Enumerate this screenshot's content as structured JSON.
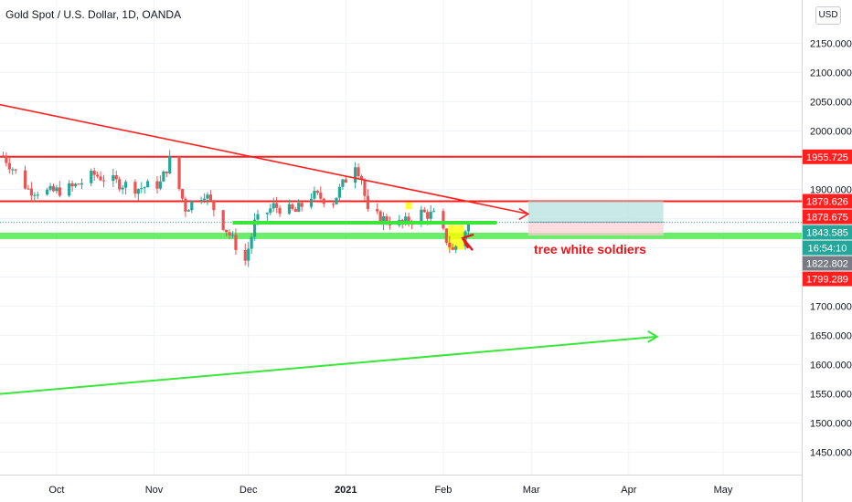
{
  "header": {
    "title": "Gold Spot / U.S. Dollar, 1D, OANDA",
    "currency_button": "USD"
  },
  "colors": {
    "up": "#26a69a",
    "down": "#ef5350",
    "resistance": "#ff1f1f",
    "support": "#39e639",
    "annotation": "#e8151b",
    "highlight": "#ffff00"
  },
  "chart_data": {
    "type": "candlestick",
    "title": "Gold Spot / U.S. Dollar, 1D, OANDA",
    "ylim": [
      1412,
      2224
    ],
    "y_ticks": [
      1450,
      1500,
      1550,
      1600,
      1650,
      1700,
      1750,
      1800,
      1850,
      1900,
      1950,
      2000,
      2050,
      2100,
      2150
    ],
    "y_tick_labels": [
      "1450.000",
      "1500.000",
      "1550.000",
      "1600.000",
      "1650.000",
      "1700.000",
      "1750.000",
      "1800.000",
      "1850.000",
      "1900.000",
      "1950.000",
      "2000.000",
      "2050.000",
      "2100.000",
      "2150.000"
    ],
    "x_labels": [
      {
        "label": "Oct",
        "date": "2020-10-01",
        "bold": false
      },
      {
        "label": "Nov",
        "date": "2020-11-01",
        "bold": false
      },
      {
        "label": "Dec",
        "date": "2020-12-01",
        "bold": false
      },
      {
        "label": "2021",
        "date": "2021-01-01",
        "bold": true
      },
      {
        "label": "Feb",
        "date": "2021-02-01",
        "bold": false
      },
      {
        "label": "Mar",
        "date": "2021-03-01",
        "bold": false
      },
      {
        "label": "Apr",
        "date": "2021-04-01",
        "bold": false
      },
      {
        "label": "May",
        "date": "2021-05-01",
        "bold": false
      }
    ],
    "x_range": [
      "2020-09-13",
      "2021-05-26"
    ],
    "close_path": [
      {
        "date": "2020-09-14",
        "close": 1958
      },
      {
        "date": "2020-09-22",
        "close": 1900
      },
      {
        "date": "2020-09-29",
        "close": 1895
      },
      {
        "date": "2020-10-06",
        "close": 1903
      },
      {
        "date": "2020-10-13",
        "close": 1925
      },
      {
        "date": "2020-10-20",
        "close": 1912
      },
      {
        "date": "2020-10-27",
        "close": 1902
      },
      {
        "date": "2020-11-03",
        "close": 1910
      },
      {
        "date": "2020-11-06",
        "close": 1950
      },
      {
        "date": "2020-11-11",
        "close": 1868
      },
      {
        "date": "2020-11-17",
        "close": 1895
      },
      {
        "date": "2020-11-23",
        "close": 1840
      },
      {
        "date": "2020-11-30",
        "close": 1778
      },
      {
        "date": "2020-12-03",
        "close": 1842
      },
      {
        "date": "2020-12-09",
        "close": 1871
      },
      {
        "date": "2020-12-16",
        "close": 1861
      },
      {
        "date": "2020-12-21",
        "close": 1890
      },
      {
        "date": "2020-12-28",
        "close": 1880
      },
      {
        "date": "2021-01-04",
        "close": 1946
      },
      {
        "date": "2021-01-06",
        "close": 1920
      },
      {
        "date": "2021-01-08",
        "close": 1858
      },
      {
        "date": "2021-01-13",
        "close": 1849
      },
      {
        "date": "2021-01-19",
        "close": 1840
      },
      {
        "date": "2021-01-25",
        "close": 1860
      },
      {
        "date": "2021-01-29",
        "close": 1855
      },
      {
        "date": "2021-02-04",
        "close": 1794
      },
      {
        "date": "2021-02-09",
        "close": 1842
      }
    ],
    "horizontal_lines": [
      {
        "name": "resistance-upper",
        "price": 1955.725,
        "color": "#ff1f1f"
      },
      {
        "name": "resistance-lower",
        "price": 1879.626,
        "color": "#ff1f1f"
      }
    ],
    "support_zone": {
      "from": 1815,
      "to": 1826
    },
    "short_support": {
      "start": "2020-11-26",
      "end": "2021-02-18",
      "price": 1843
    },
    "trendline_down": {
      "start": [
        "2020-09-13",
        2045
      ],
      "end": [
        "2021-02-28",
        1858
      ]
    },
    "trendline_up": {
      "start": [
        "2020-09-13",
        1550
      ],
      "end": [
        "2021-04-10",
        1648
      ]
    },
    "position_box": {
      "start": "2021-02-28",
      "end": "2021-04-12",
      "target": 1880,
      "entry": 1844,
      "stop": 1821
    },
    "highlights": [
      {
        "date": "2021-01-21",
        "price": 1872,
        "width_days": 2,
        "height": 12
      },
      {
        "date": "2021-02-05",
        "price": 1818,
        "width_days": 5,
        "height": 42
      }
    ],
    "annotation": {
      "text": "tree white soldiers",
      "arrow_from": [
        "2021-02-08",
        1796
      ],
      "arrow_to": [
        "2021-02-06",
        1826
      ]
    },
    "price_labels": [
      {
        "text": "1955.725",
        "price": 1955.725,
        "bg": "#ff1f1f",
        "fg": "#ffffff"
      },
      {
        "text": "1879.626",
        "price": 1879.626,
        "bg": "#ff1f1f",
        "fg": "#ffffff"
      },
      {
        "text": "1878.675",
        "price": 1878.675,
        "bg": "#ff1f1f",
        "fg": "#ffffff"
      },
      {
        "text": "1843.585",
        "price": 1843.585,
        "bg": "#26a69a",
        "fg": "#ffffff"
      },
      {
        "text": "16:54:10",
        "price": 1826,
        "bg": "#26a69a",
        "fg": "#ffffff"
      },
      {
        "text": "1822.802",
        "price": 1822.802,
        "bg": "#787b86",
        "fg": "#ffffff"
      },
      {
        "text": "1799.289",
        "price": 1799.289,
        "bg": "#ff1f1f",
        "fg": "#ffffff"
      }
    ]
  }
}
